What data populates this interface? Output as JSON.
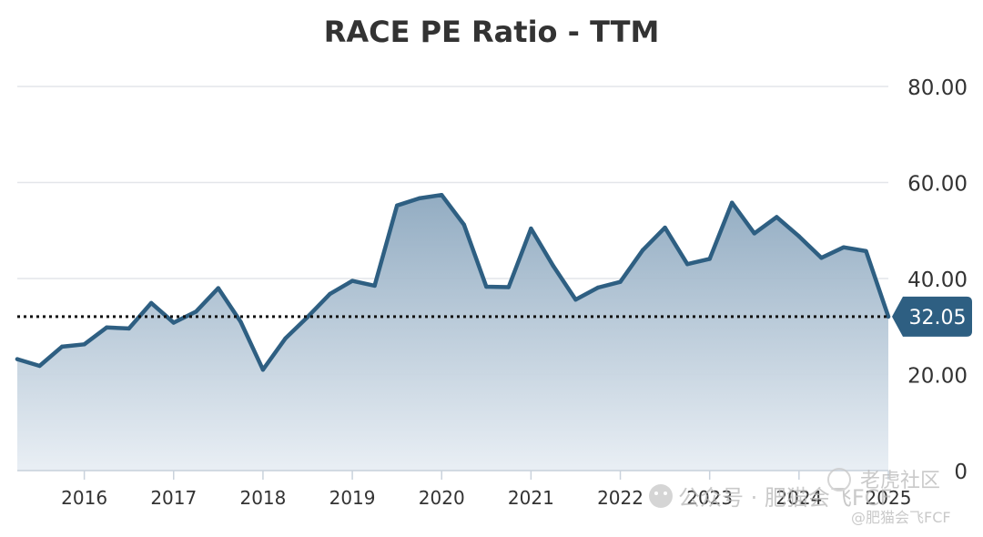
{
  "chart_data": {
    "type": "area",
    "title": "RACE PE Ratio - TTM",
    "xlabel": "",
    "ylabel": "",
    "ylim": [
      0,
      80
    ],
    "yticks": [
      "0",
      "20.00",
      "40.00",
      "60.00",
      "80.00"
    ],
    "yticks_values": [
      0,
      20,
      40,
      60,
      80
    ],
    "xticks": [
      "2016",
      "2017",
      "2018",
      "2019",
      "2020",
      "2021",
      "2022",
      "2023",
      "2024",
      "2025"
    ],
    "xticks_values": [
      2016,
      2017,
      2018,
      2019,
      2020,
      2021,
      2022,
      2023,
      2024,
      2025
    ],
    "grid": true,
    "reference_line": {
      "value": 32.05,
      "style": "dotted"
    },
    "last_value_label": "32.05",
    "series": [
      {
        "name": "RACE PE Ratio - TTM",
        "x": [
          2015.25,
          2015.5,
          2015.75,
          2016.0,
          2016.25,
          2016.5,
          2016.75,
          2017.0,
          2017.25,
          2017.5,
          2017.75,
          2018.0,
          2018.25,
          2018.5,
          2018.75,
          2019.0,
          2019.25,
          2019.5,
          2019.75,
          2020.0,
          2020.25,
          2020.5,
          2020.75,
          2021.0,
          2021.25,
          2021.5,
          2021.75,
          2022.0,
          2022.25,
          2022.5,
          2022.75,
          2023.0,
          2023.25,
          2023.5,
          2023.75,
          2024.0,
          2024.25,
          2024.5,
          2024.75,
          2025.0
        ],
        "values": [
          23.2,
          21.8,
          25.8,
          26.3,
          29.8,
          29.6,
          34.9,
          30.8,
          33.1,
          38.0,
          31.0,
          21.0,
          27.5,
          32.0,
          36.8,
          39.5,
          38.5,
          55.2,
          56.7,
          57.4,
          51.2,
          38.3,
          38.2,
          50.4,
          42.6,
          35.6,
          38.1,
          39.3,
          45.9,
          50.6,
          43.0,
          44.1,
          55.8,
          49.4,
          52.8,
          48.8,
          44.3,
          46.5,
          45.7,
          32.05
        ]
      }
    ]
  },
  "watermark": {
    "line1": "公众号 · 肥猫会飞FCF",
    "line2": "老虎社区",
    "line3": "@肥猫会飞FCF"
  }
}
